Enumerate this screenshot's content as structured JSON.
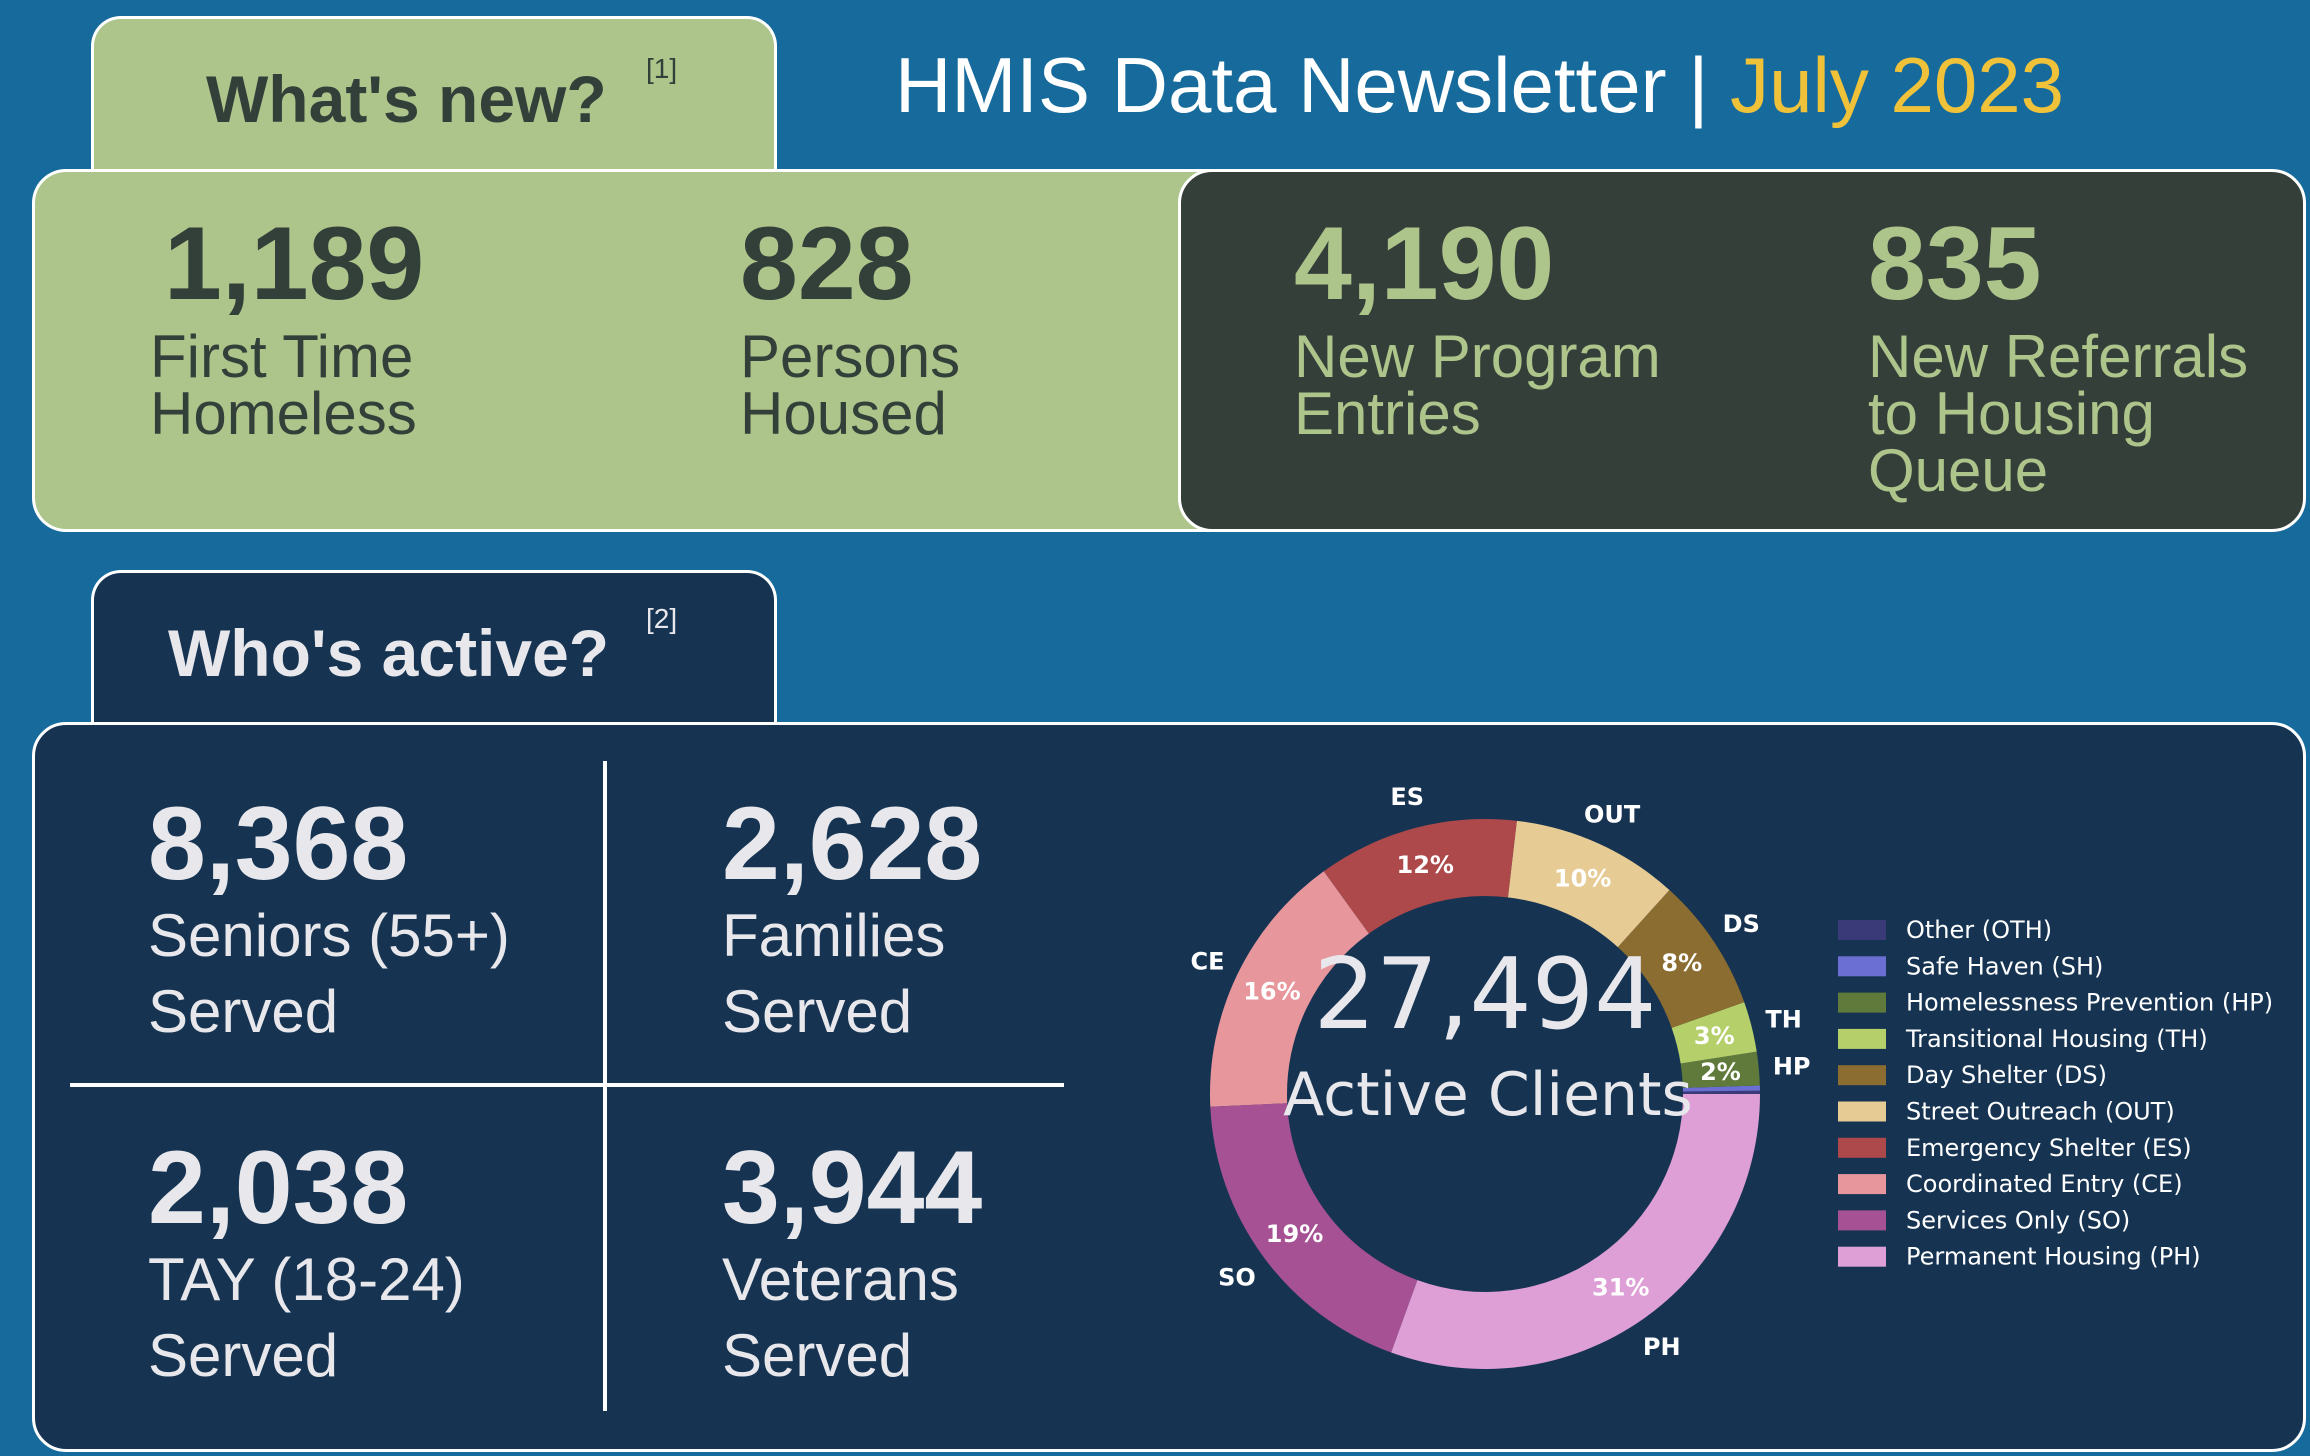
{
  "header": {
    "title": "HMIS Data Newsletter |",
    "month": "July 2023"
  },
  "whats_new": {
    "tab_label": "What's new?",
    "ref": "[1]",
    "stats": [
      {
        "value": "1,189",
        "line1": "First Time",
        "line2": "Homeless"
      },
      {
        "value": "828",
        "line1": "Persons",
        "line2": "Housed"
      },
      {
        "value": "4,190",
        "line1": "New Program",
        "line2": "Entries"
      },
      {
        "value": "835",
        "line1": "New Referrals",
        "line2": "to Housing",
        "line3": "Queue"
      }
    ]
  },
  "whos_active": {
    "tab_label": "Who's active?",
    "ref": "[2]",
    "stats": [
      {
        "value": "8,368",
        "line1": "Seniors (55+)",
        "line2": "Served"
      },
      {
        "value": "2,628",
        "line1": "Families",
        "line2": "Served"
      },
      {
        "value": "2,038",
        "line1": "TAY (18-24)",
        "line2": "Served"
      },
      {
        "value": "3,944",
        "line1": "Veterans",
        "line2": "Served"
      }
    ]
  },
  "colors": {
    "background": "#176b9c",
    "green": "#adc58b",
    "dark": "#353f3a",
    "navy": "#163452",
    "accent": "#f0c23a"
  },
  "chart_data": {
    "type": "pie",
    "donut": true,
    "center_value": "27,494",
    "center_label": "Active Clients",
    "slices": [
      {
        "abbr": "OTH",
        "name": "Other (OTH)",
        "value": 0.2,
        "label": "",
        "color": "#3b3a78"
      },
      {
        "abbr": "SH",
        "name": "Safe Haven (SH)",
        "value": 0.3,
        "label": "",
        "color": "#6b6fd3"
      },
      {
        "abbr": "HP",
        "name": "Homelessness Prevention (HP)",
        "value": 2,
        "label": "2%",
        "color": "#5f7a3a"
      },
      {
        "abbr": "TH",
        "name": "Transitional Housing (TH)",
        "value": 3,
        "label": "3%",
        "color": "#b5cf6b"
      },
      {
        "abbr": "DS",
        "name": "Day Shelter (DS)",
        "value": 8,
        "label": "8%",
        "color": "#8c6d31"
      },
      {
        "abbr": "OUT",
        "name": "Street Outreach (OUT)",
        "value": 10,
        "label": "10%",
        "color": "#e7cb94"
      },
      {
        "abbr": "ES",
        "name": "Emergency Shelter (ES)",
        "value": 12,
        "label": "12%",
        "color": "#ad494a"
      },
      {
        "abbr": "CE",
        "name": "Coordinated Entry (CE)",
        "value": 16,
        "label": "16%",
        "color": "#e7969c"
      },
      {
        "abbr": "SO",
        "name": "Services Only (SO)",
        "value": 19,
        "label": "19%",
        "color": "#a55194"
      },
      {
        "abbr": "PH",
        "name": "Permanent Housing (PH)",
        "value": 31,
        "label": "31%",
        "color": "#de9ed6"
      }
    ],
    "legend_placement": "right"
  }
}
